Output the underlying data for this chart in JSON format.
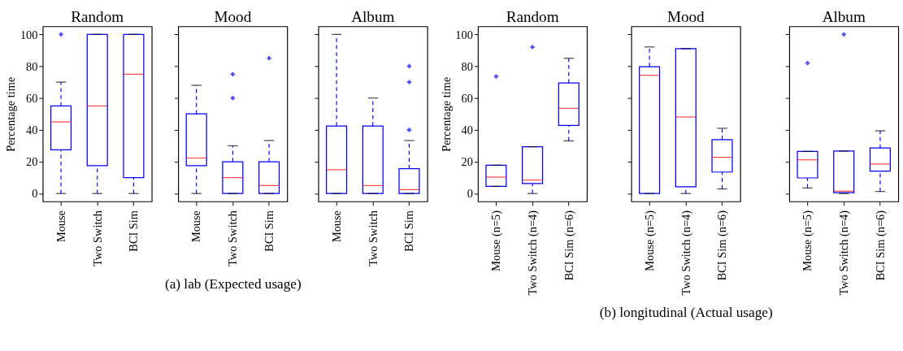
{
  "chart_data": [
    {
      "type": "box",
      "title": "Random",
      "ylabel": "Percentage time",
      "categories": [
        "Mouse",
        "Two Switch",
        "BCI Sim"
      ],
      "ylim": [
        -5,
        105
      ],
      "yticks": [
        0,
        20,
        40,
        60,
        80,
        100
      ],
      "series": [
        {
          "color": "#0000ff",
          "boxes": [
            {
              "low": 0,
              "q1": 27.5,
              "median": 45,
              "q3": 55,
              "high": 70,
              "outliers": [
                100
              ]
            },
            {
              "low": 0,
              "q1": 17.5,
              "median": 55,
              "q3": 100,
              "high": 100
            },
            {
              "low": 0,
              "q1": 10,
              "median": 75,
              "q3": 100,
              "high": 100
            }
          ]
        }
      ]
    },
    {
      "type": "box",
      "title": "Mood",
      "categories": [
        "Mouse",
        "Two Switch",
        "BCI Sim"
      ],
      "ylim": [
        -5,
        105
      ],
      "yticks": [
        0,
        20,
        40,
        60,
        80,
        100
      ],
      "tick_labels": "x",
      "annotations": [
        "(a) lab (Expected usage)"
      ],
      "series": [
        {
          "color": "#0000ff",
          "boxes": [
            {
              "low": 0,
              "q1": 17.5,
              "median": 22.3,
              "q3": 50,
              "high": 68
            },
            {
              "low": 0,
              "q1": 0,
              "median": 10,
              "q3": 20,
              "high": 30,
              "outliers": [
                60,
                75
              ]
            },
            {
              "low": 0,
              "q1": 0,
              "median": 5,
              "q3": 20,
              "high": 33.3,
              "outliers": [
                85
              ]
            }
          ]
        }
      ]
    },
    {
      "type": "box",
      "title": "Album",
      "categories": [
        "Mouse",
        "Two Switch",
        "BCI Sim"
      ],
      "ylim": [
        -5,
        105
      ],
      "yticks": [
        0,
        20,
        40,
        60,
        80,
        100
      ],
      "tick_labels": "x",
      "series": [
        {
          "color": "#0000ff",
          "boxes": [
            {
              "low": 0,
              "q1": 0,
              "median": 15,
              "q3": 42.4,
              "high": 100
            },
            {
              "low": 0,
              "q1": 0,
              "median": 5,
              "q3": 42.4,
              "high": 60
            },
            {
              "low": 0,
              "q1": 0,
              "median": 2.4,
              "q3": 15.6,
              "high": 33.3,
              "outliers": [
                40,
                70,
                80
              ]
            }
          ]
        }
      ]
    },
    {
      "type": "box",
      "title": "Random",
      "ylabel": "Percentage time",
      "categories": [
        "Mouse (n=5)",
        "Two Switch (n=4)",
        "BCI Sim (n=6)"
      ],
      "ylim": [
        -5,
        105
      ],
      "yticks": [
        0,
        20,
        40,
        60,
        80,
        100
      ],
      "series": [
        {
          "color": "#0000ff",
          "boxes": [
            {
              "low": 4.5,
              "q1": 4.5,
              "median": 10.3,
              "q3": 17.8,
              "high": 17.8,
              "outliers": [
                73.6
              ]
            },
            {
              "low": 0,
              "q1": 6.3,
              "median": 8.5,
              "q3": 29.4,
              "high": 29.4,
              "outliers": [
                92
              ]
            },
            {
              "low": 33.1,
              "q1": 42.8,
              "median": 53.5,
              "q3": 69.5,
              "high": 85
            }
          ]
        }
      ]
    },
    {
      "type": "box",
      "title": "Mood",
      "categories": [
        "Mouse (n=5)",
        "Two Switch (n=4)",
        "BCI Sim (n=6)"
      ],
      "ylim": [
        -5,
        105
      ],
      "yticks": [
        0,
        20,
        40,
        60,
        80,
        100
      ],
      "tick_labels": "x",
      "annotations": [
        "(b) longitudinal (Actual usage)"
      ],
      "series": [
        {
          "color": "#0000ff",
          "boxes": [
            {
              "low": 0,
              "q1": 0,
              "median": 74.3,
              "q3": 79.7,
              "high": 92.1
            },
            {
              "low": 0,
              "q1": 4.2,
              "median": 48.1,
              "q3": 91,
              "high": 91
            },
            {
              "low": 2.9,
              "q1": 13.5,
              "median": 22.7,
              "q3": 33.9,
              "high": 41
            }
          ]
        }
      ]
    },
    {
      "type": "box",
      "title": "Album",
      "categories": [
        "Mouse (n=5)",
        "Two Switch (n=4)",
        "BCI Sim (n=6)"
      ],
      "ylim": [
        -5,
        105
      ],
      "yticks": [
        0,
        20,
        40,
        60,
        80,
        100
      ],
      "tick_labels": "x",
      "series": [
        {
          "color": "#0000ff",
          "boxes": [
            {
              "low": 3.5,
              "q1": 9.8,
              "median": 21.2,
              "q3": 26.5,
              "high": 26.5,
              "outliers": [
                82
              ]
            },
            {
              "low": 0,
              "q1": 0.5,
              "median": 1.5,
              "q3": 26.7,
              "high": 26.7,
              "outliers": [
                100
              ]
            },
            {
              "low": 1.3,
              "q1": 14.1,
              "median": 18.5,
              "q3": 28.6,
              "high": 39.4
            }
          ]
        }
      ]
    }
  ]
}
